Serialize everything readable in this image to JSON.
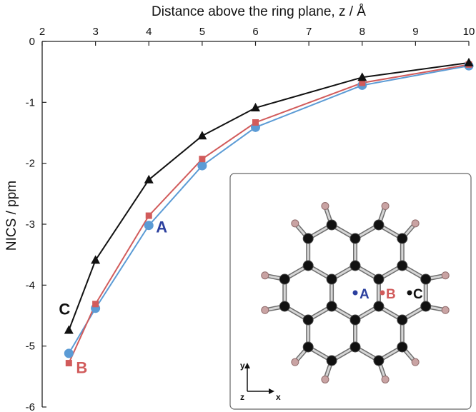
{
  "chart_data": {
    "type": "line",
    "xlabel": "Distance above the ring plane, z / Å",
    "ylabel": "NICS / ppm",
    "xlim": [
      2,
      10
    ],
    "ylim": [
      -6,
      0
    ],
    "x_axis_position": "top",
    "x_ticks": [
      2,
      3,
      4,
      5,
      6,
      7,
      8,
      9,
      10
    ],
    "y_ticks": [
      0,
      -1,
      -2,
      -3,
      -4,
      -5,
      -6
    ],
    "grid": false,
    "series": [
      {
        "name": "A",
        "color": "#5b9bd5",
        "marker": "circle",
        "x": [
          2.5,
          3,
          4,
          5,
          6,
          8,
          10
        ],
        "y": [
          -5.12,
          -4.38,
          -3.02,
          -2.04,
          -1.41,
          -0.72,
          -0.4
        ]
      },
      {
        "name": "B",
        "color": "#d15b5b",
        "marker": "square",
        "x": [
          2.5,
          3,
          4,
          5,
          6,
          8,
          10
        ],
        "y": [
          -5.28,
          -4.31,
          -2.86,
          -1.93,
          -1.33,
          -0.68,
          -0.38
        ]
      },
      {
        "name": "C",
        "color": "#111111",
        "marker": "triangle",
        "x": [
          2.5,
          3,
          4,
          5,
          6,
          8,
          10
        ],
        "y": [
          -4.74,
          -3.59,
          -2.27,
          -1.55,
          -1.09,
          -0.59,
          -0.35
        ]
      }
    ]
  },
  "inset": {
    "labels": [
      {
        "text": "A",
        "color": "#2b3f9e"
      },
      {
        "text": "B",
        "color": "#d15b5b"
      },
      {
        "text": "C",
        "color": "#111111"
      }
    ],
    "axes": {
      "y": "y",
      "x": "x",
      "z": "z"
    }
  }
}
